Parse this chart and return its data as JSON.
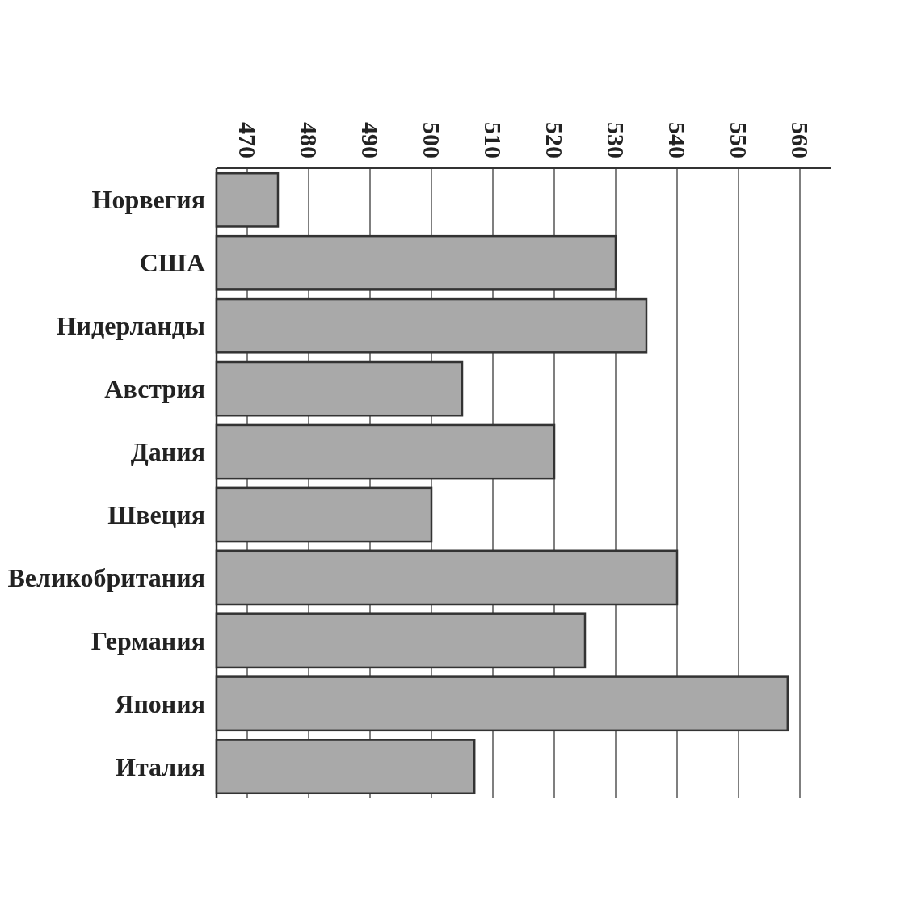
{
  "chart_data": {
    "type": "bar",
    "orientation": "horizontal",
    "categories": [
      "Норвегия",
      "США",
      "Нидерланды",
      "Австрия",
      "Дания",
      "Швеция",
      "Великобритания",
      "Германия",
      "Япония",
      "Италия"
    ],
    "values": [
      475,
      530,
      535,
      505,
      520,
      500,
      540,
      525,
      558,
      507
    ],
    "color": "#a9a9a9",
    "xlim": [
      465,
      565
    ],
    "xticks": [
      470,
      480,
      490,
      500,
      510,
      520,
      530,
      540,
      550,
      560
    ],
    "grid": "x"
  }
}
